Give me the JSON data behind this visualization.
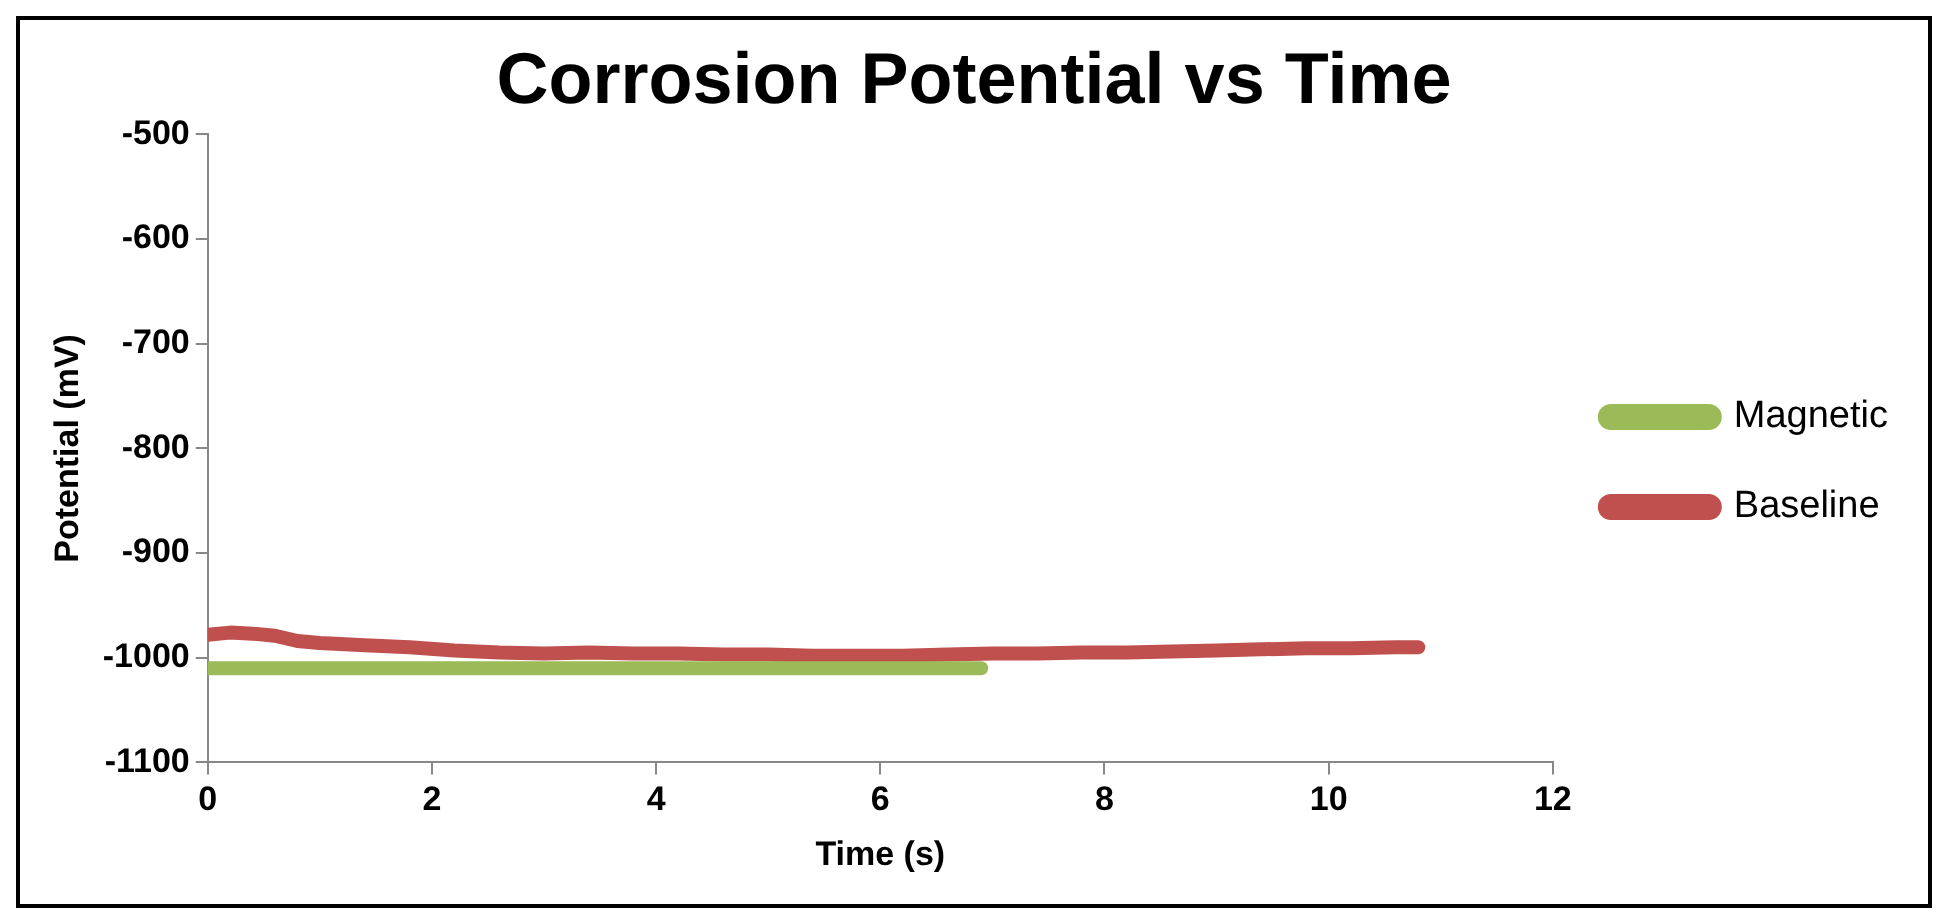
{
  "chart_data": {
    "type": "line",
    "title": "Corrosion Potential vs Time",
    "xlabel": "Time (s)",
    "ylabel": "Potential (mV)",
    "xlim": [
      0,
      12
    ],
    "xticks": [
      0,
      2,
      4,
      6,
      8,
      10,
      12
    ],
    "ylim": [
      -1100,
      -500
    ],
    "yticks": [
      -1100,
      -1000,
      -900,
      -800,
      -700,
      -600,
      -500
    ],
    "grid": false,
    "legend": "right",
    "marker": "none",
    "line_style": "solid",
    "series": [
      {
        "name": "Magnetic",
        "color": "#9bbb59",
        "x": [
          0,
          1,
          2,
          3,
          4,
          5,
          6,
          6.9
        ],
        "values": [
          -1010,
          -1010,
          -1010,
          -1010,
          -1010,
          -1010,
          -1010,
          -1010
        ]
      },
      {
        "name": "Baseline",
        "color": "#c0504d",
        "x": [
          0,
          0.2,
          0.4,
          0.6,
          0.8,
          1.0,
          1.4,
          1.8,
          2.2,
          2.6,
          3.0,
          3.4,
          3.8,
          4.2,
          4.6,
          5.0,
          5.4,
          5.8,
          6.2,
          6.6,
          7.0,
          7.4,
          7.8,
          8.2,
          8.6,
          9.0,
          9.4,
          9.8,
          10.2,
          10.6,
          10.8
        ],
        "values": [
          -978,
          -976,
          -977,
          -979,
          -984,
          -986,
          -988,
          -990,
          -993,
          -995,
          -996,
          -995,
          -996,
          -996,
          -997,
          -997,
          -998,
          -998,
          -998,
          -997,
          -996,
          -996,
          -995,
          -995,
          -994,
          -993,
          -992,
          -991,
          -991,
          -990,
          -990
        ]
      }
    ]
  }
}
